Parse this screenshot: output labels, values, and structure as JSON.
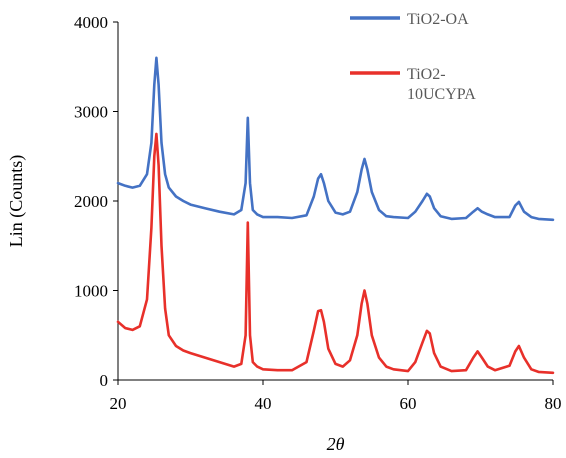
{
  "chart_data": {
    "type": "line",
    "xlabel": "2θ",
    "ylabel": "Lin (Counts)",
    "xlim": [
      20,
      80
    ],
    "ylim": [
      0,
      4000
    ],
    "xticks": [
      "20",
      "40",
      "60",
      "80"
    ],
    "yticks": [
      "0",
      "1000",
      "2000",
      "3000",
      "4000"
    ],
    "grid": false,
    "legend_position": "top-right",
    "series": [
      {
        "name": "TiO2-OA",
        "name_lines": [
          "TiO2-OA"
        ],
        "color": "#4472C4",
        "x": [
          20,
          21,
          22,
          23,
          24,
          24.6,
          25.0,
          25.3,
          25.6,
          26.0,
          26.5,
          27,
          28,
          29,
          30,
          32,
          34,
          36,
          37,
          37.6,
          37.9,
          38.2,
          38.6,
          39.2,
          40,
          42,
          44,
          46,
          47,
          47.6,
          48.0,
          48.4,
          49,
          50,
          51,
          52,
          53,
          53.6,
          54.0,
          54.4,
          55,
          56,
          57,
          58,
          60,
          61,
          62,
          62.6,
          63.0,
          63.6,
          64.5,
          66,
          68,
          69.0,
          69.6,
          70.2,
          71,
          72,
          74,
          74.8,
          75.3,
          76,
          77,
          78,
          80
        ],
        "y": [
          2200,
          2170,
          2150,
          2170,
          2300,
          2650,
          3300,
          3600,
          3300,
          2650,
          2300,
          2150,
          2050,
          2000,
          1960,
          1920,
          1880,
          1850,
          1900,
          2200,
          2930,
          2200,
          1900,
          1850,
          1820,
          1820,
          1810,
          1840,
          2050,
          2250,
          2300,
          2200,
          2000,
          1870,
          1850,
          1880,
          2100,
          2350,
          2470,
          2350,
          2100,
          1900,
          1830,
          1820,
          1810,
          1880,
          2000,
          2080,
          2050,
          1920,
          1830,
          1800,
          1810,
          1880,
          1920,
          1880,
          1850,
          1820,
          1820,
          1950,
          1990,
          1880,
          1820,
          1800,
          1790
        ]
      },
      {
        "name": "TiO2-10UCYPA",
        "name_lines": [
          "TiO2-",
          "10UCYPA"
        ],
        "color": "#E8302A",
        "x": [
          20,
          21,
          22,
          23,
          24,
          24.6,
          25.0,
          25.3,
          25.6,
          26.0,
          26.5,
          27,
          28,
          29,
          30,
          32,
          34,
          36,
          37,
          37.6,
          37.9,
          38.2,
          38.6,
          39.2,
          40,
          42,
          44,
          46,
          47,
          47.6,
          48.0,
          48.4,
          49,
          50,
          51,
          52,
          53,
          53.6,
          54.0,
          54.4,
          55,
          56,
          57,
          58,
          60,
          61,
          62,
          62.6,
          63.0,
          63.6,
          64.5,
          66,
          68,
          69.0,
          69.6,
          70.2,
          71,
          72,
          74,
          74.8,
          75.3,
          76,
          77,
          78,
          80
        ],
        "y": [
          650,
          580,
          560,
          600,
          900,
          1700,
          2500,
          2750,
          2400,
          1500,
          800,
          500,
          380,
          330,
          300,
          250,
          200,
          150,
          180,
          500,
          1760,
          500,
          200,
          150,
          120,
          110,
          110,
          200,
          550,
          770,
          780,
          650,
          350,
          180,
          150,
          220,
          500,
          850,
          1000,
          850,
          500,
          250,
          150,
          120,
          100,
          200,
          420,
          550,
          520,
          300,
          150,
          100,
          110,
          250,
          320,
          250,
          150,
          110,
          160,
          320,
          380,
          250,
          120,
          90,
          80
        ]
      }
    ]
  }
}
